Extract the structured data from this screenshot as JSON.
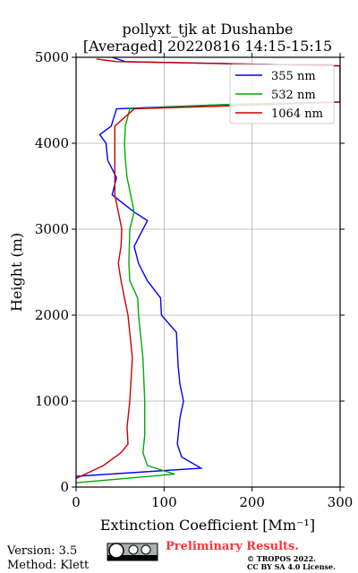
{
  "chart_data": {
    "type": "line",
    "title": "pollyxt_tjk at Dushanbe",
    "subtitle": "[Averaged] 20220816 14:15-15:15",
    "xlabel": "Extinction Coefficient [Mm⁻¹]",
    "ylabel": "Height (m)",
    "xlim": [
      0,
      300
    ],
    "ylim": [
      0,
      5000
    ],
    "xticks": [
      0,
      100,
      200,
      300
    ],
    "yticks": [
      0,
      1000,
      2000,
      3000,
      4000,
      5000
    ],
    "grid": true,
    "legend": "upper right",
    "series": [
      {
        "name": "355 nm",
        "color": "#0000ff",
        "y": [
          125,
          220,
          350,
          500,
          800,
          1000,
          1200,
          1400,
          1600,
          1800,
          2000,
          2200,
          2400,
          2600,
          2800,
          3000,
          3100,
          3200,
          3400,
          3600,
          3800,
          4000,
          4100,
          4200,
          4400,
          4450,
          4480,
          4900,
          4950,
          5000
        ],
        "values": [
          0,
          142,
          120,
          115,
          118,
          122,
          118,
          116,
          115,
          114,
          97,
          96,
          81,
          71,
          66,
          76,
          81,
          66,
          41,
          46,
          36,
          34,
          27,
          40,
          46,
          168,
          300,
          300,
          56,
          41
        ]
      },
      {
        "name": "532 nm",
        "color": "#00aa00",
        "y": [
          50,
          150,
          250,
          400,
          600,
          1000,
          1500,
          2000,
          2200,
          2400,
          2600,
          3000,
          3200,
          3400,
          3600,
          3800,
          4000,
          4200,
          4400,
          4450,
          4480
        ],
        "values": [
          0,
          112,
          81,
          76,
          78,
          78,
          76,
          71,
          70,
          61,
          60,
          61,
          66,
          62,
          58,
          56,
          55,
          56,
          61,
          168,
          300
        ]
      },
      {
        "name": "1064 nm",
        "color": "#cc0000",
        "y": [
          100,
          250,
          400,
          500,
          700,
          1000,
          1500,
          2000,
          2400,
          2600,
          2800,
          3000,
          3400,
          3800,
          4000,
          4200,
          4400,
          4450,
          4480,
          4900,
          4950,
          4980
        ],
        "values": [
          0,
          31,
          51,
          59,
          58,
          61,
          64,
          59,
          51,
          48,
          51,
          52,
          44,
          44,
          44,
          44,
          66,
          219,
          300,
          300,
          46,
          23
        ]
      }
    ]
  },
  "footer": {
    "version": "Version: 3.5",
    "method": "Method: Klett",
    "preliminary": "Preliminary Results.",
    "copyright": "© TROPOS 2022.",
    "license": "CC BY SA 4.0 License."
  }
}
